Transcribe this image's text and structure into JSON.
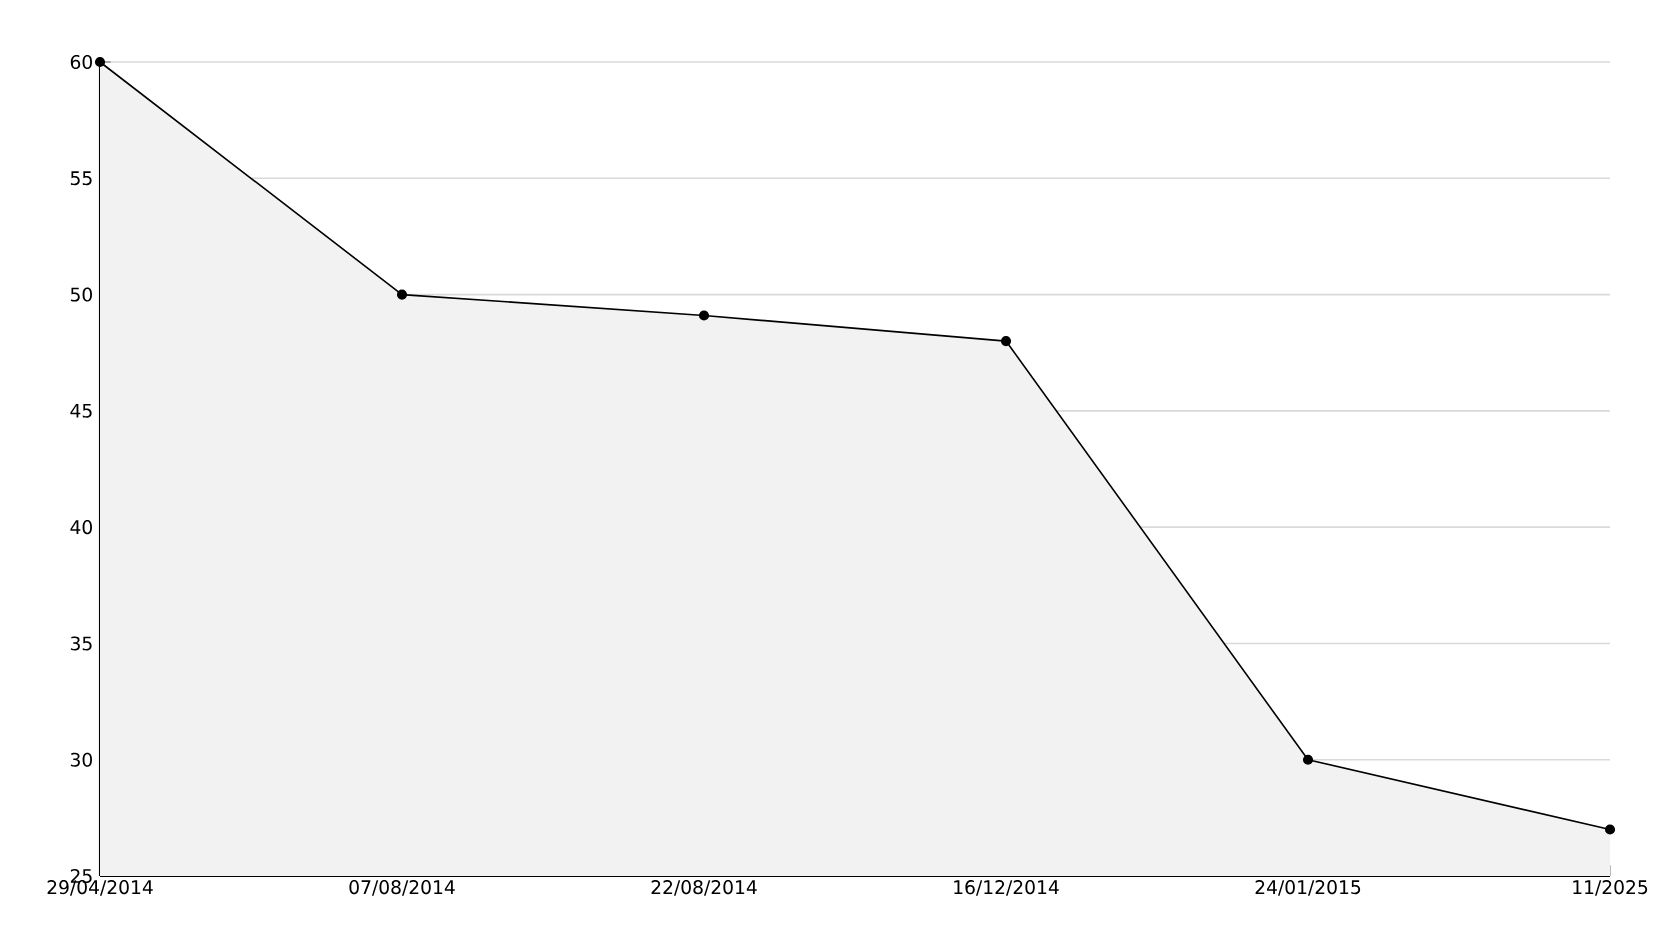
{
  "chart_data": {
    "type": "area",
    "categories": [
      "29/04/2014",
      "07/08/2014",
      "22/08/2014",
      "16/12/2014",
      "24/01/2015",
      "11/2025"
    ],
    "series": [
      {
        "color": "#f2f2f2",
        "values": [
          60,
          50,
          49.1,
          48,
          30,
          27
        ]
      }
    ],
    "ylim": [
      25,
      60
    ],
    "yticks": [
      25,
      30,
      35,
      40,
      45,
      50,
      55,
      60
    ],
    "grid": "y",
    "marker": "circle",
    "line_style": "solid"
  }
}
